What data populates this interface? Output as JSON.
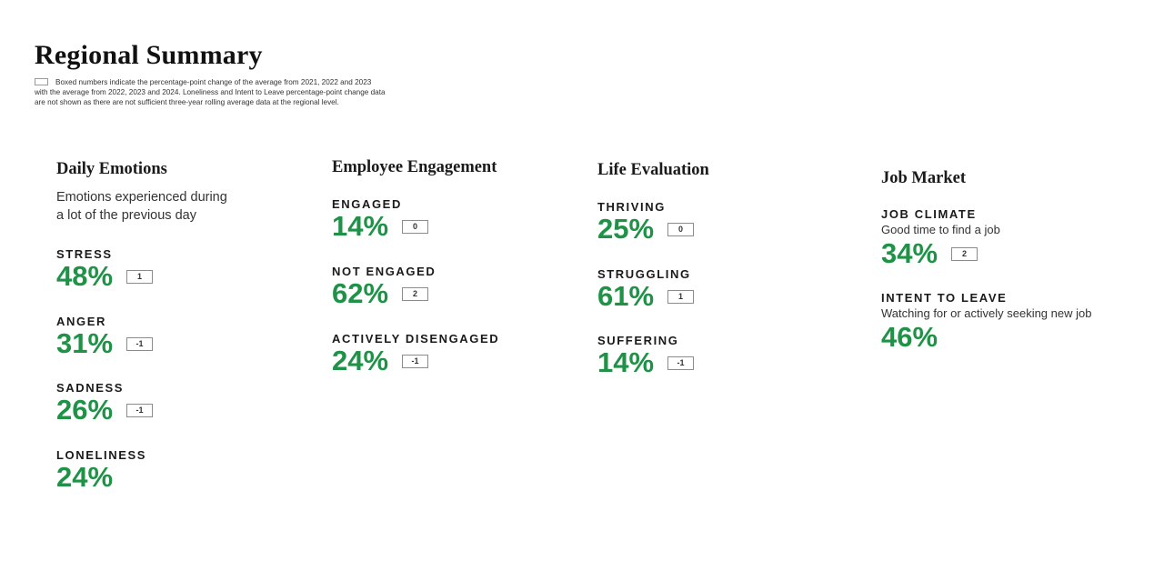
{
  "title": "Regional Summary",
  "legend_lines": [
    "Boxed numbers indicate the percentage-point change of the average from 2021, 2022 and 2023",
    "with the average from 2022, 2023 and 2024. Loneliness and Intent to Leave percentage-point change data",
    "are not shown as there are not sufficient three-year rolling average data at the regional level."
  ],
  "colors": {
    "value": "#1f9247",
    "box_border": "#8c8c8c"
  },
  "columns": [
    {
      "heading": "Daily Emotions",
      "subtitle_lines": [
        "Emotions experienced during",
        "a lot of the previous day"
      ],
      "metrics": [
        {
          "label": "STRESS",
          "value": "48%",
          "change": "1"
        },
        {
          "label": "ANGER",
          "value": "31%",
          "change": "-1"
        },
        {
          "label": "SADNESS",
          "value": "26%",
          "change": "-1"
        },
        {
          "label": "LONELINESS",
          "value": "24%"
        }
      ]
    },
    {
      "heading": "Employee Engagement",
      "metrics": [
        {
          "label": "ENGAGED",
          "value": "14%",
          "change": "0"
        },
        {
          "label": "NOT ENGAGED",
          "value": "62%",
          "change": "2"
        },
        {
          "label": "ACTIVELY DISENGAGED",
          "value": "24%",
          "change": "-1"
        }
      ]
    },
    {
      "heading": "Life Evaluation",
      "metrics": [
        {
          "label": "THRIVING",
          "value": "25%",
          "change": "0"
        },
        {
          "label": "STRUGGLING",
          "value": "61%",
          "change": "1"
        },
        {
          "label": "SUFFERING",
          "value": "14%",
          "change": "-1"
        }
      ]
    },
    {
      "heading": "Job Market",
      "metrics": [
        {
          "label": "JOB CLIMATE",
          "desc": "Good time to find a job",
          "value": "34%",
          "change": "2"
        },
        {
          "label": "INTENT TO LEAVE",
          "desc": "Watching for or actively seeking new job",
          "value": "46%"
        }
      ]
    }
  ]
}
